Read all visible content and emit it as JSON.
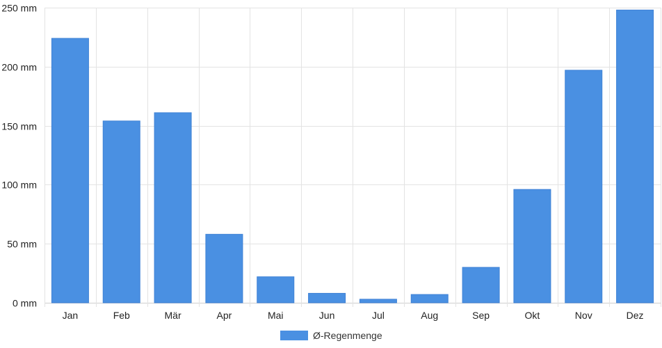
{
  "chart_data": {
    "type": "bar",
    "categories": [
      "Jan",
      "Feb",
      "Mär",
      "Apr",
      "Mai",
      "Jun",
      "Jul",
      "Aug",
      "Sep",
      "Okt",
      "Nov",
      "Dez"
    ],
    "series": [
      {
        "name": "Ø-Regenmenge",
        "values": [
          224,
          154,
          161,
          58,
          22,
          8,
          3,
          7,
          30,
          96,
          197,
          248
        ],
        "color": "#4a90e2"
      }
    ],
    "y_unit": "mm",
    "y_ticks": [
      0,
      50,
      100,
      150,
      200,
      250
    ],
    "y_tick_labels": [
      "0 mm",
      "50 mm",
      "100 mm",
      "150 mm",
      "200 mm",
      "250 mm"
    ],
    "ylim": [
      0,
      250
    ],
    "grid": true,
    "legend_position": "bottom-center",
    "title": "",
    "xlabel": "",
    "ylabel": ""
  }
}
